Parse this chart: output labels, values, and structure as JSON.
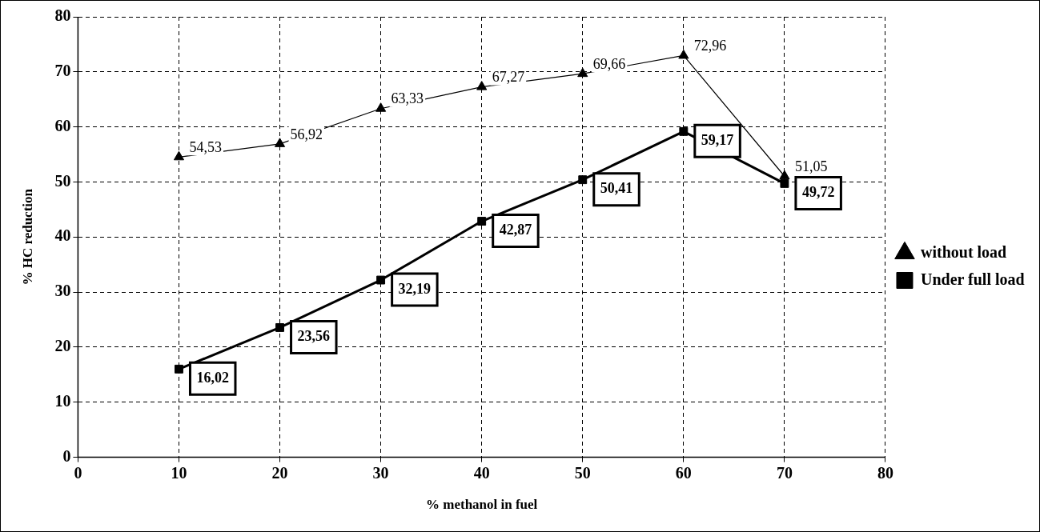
{
  "chart_data": {
    "type": "line",
    "xlabel": "% methanol in fuel",
    "ylabel": "% HC reduction",
    "x": [
      10,
      20,
      30,
      40,
      50,
      60,
      70
    ],
    "series": [
      {
        "name": "without load",
        "color": "#000000",
        "marker": "triangle",
        "values": [
          54.53,
          56.92,
          63.33,
          67.27,
          69.66,
          72.96,
          51.05
        ],
        "value_labels": [
          "54,53",
          "56,92",
          "63,33",
          "67,27",
          "69,66",
          "72,96",
          "51,05"
        ]
      },
      {
        "name": "Under full load",
        "color": "#000000",
        "marker": "square",
        "values": [
          16.02,
          23.56,
          32.19,
          42.87,
          50.41,
          59.17,
          49.72
        ],
        "value_labels": [
          "16,02",
          "23,56",
          "32,19",
          "42,87",
          "50,41",
          "59,17",
          "49,72"
        ]
      }
    ],
    "xlim": [
      0,
      80
    ],
    "xticks": [
      0,
      10,
      20,
      30,
      40,
      50,
      60,
      70,
      80
    ],
    "ylim": [
      0,
      80
    ],
    "yticks": [
      0,
      10,
      20,
      30,
      40,
      50,
      60,
      70,
      80
    ],
    "grid": true,
    "legend": "right",
    "line_style": "solid"
  }
}
